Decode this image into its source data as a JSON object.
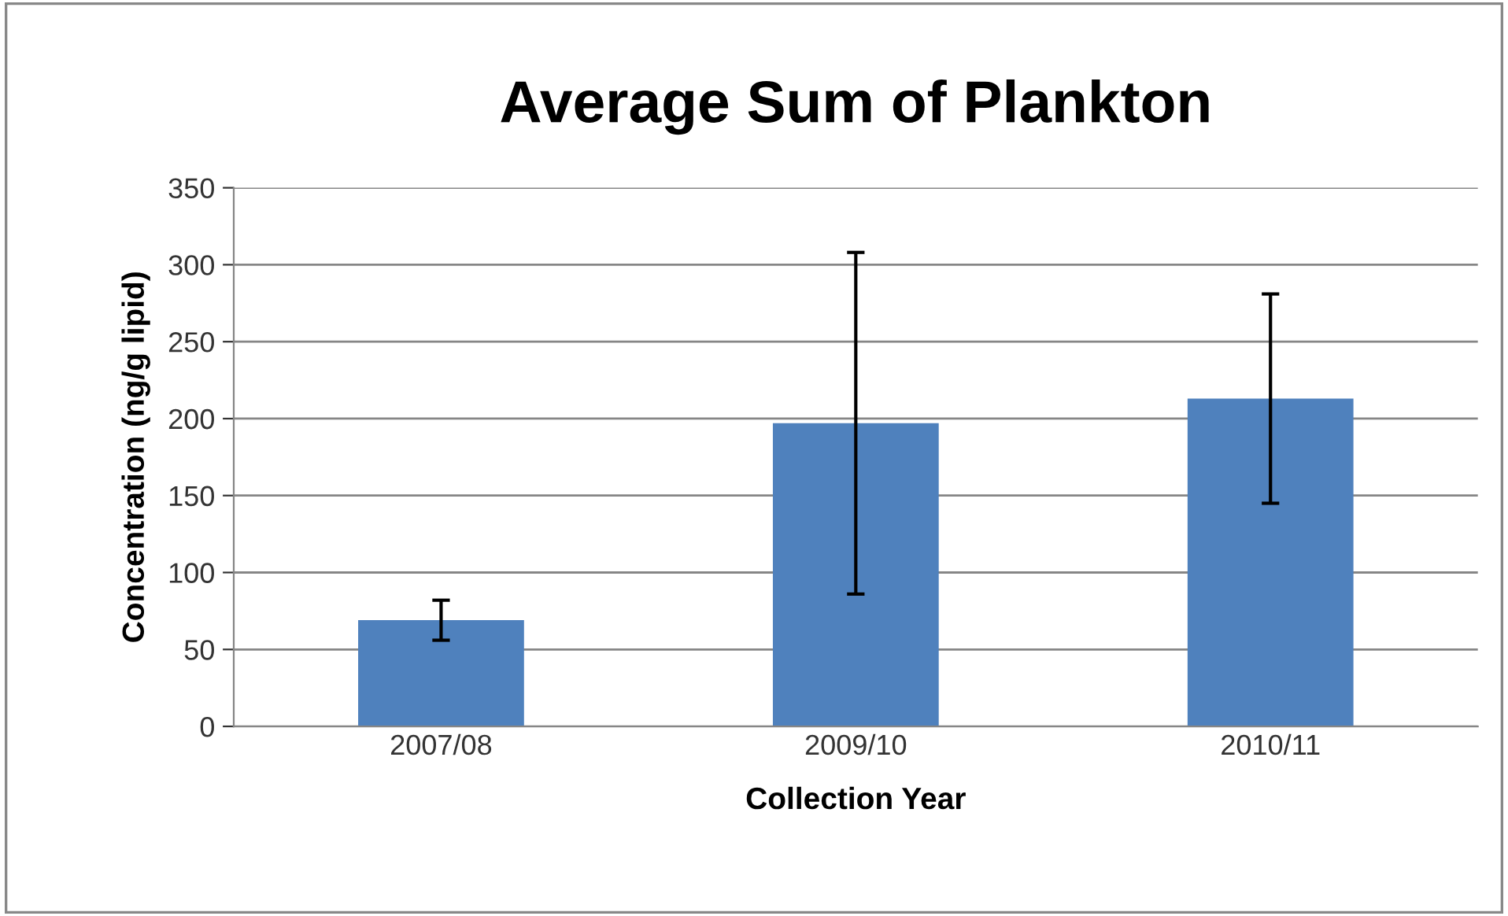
{
  "chart_data": {
    "type": "bar",
    "title": "Average Sum of Plankton",
    "xlabel": "Collection Year",
    "ylabel": "Concentration (ng/g lipid)",
    "categories": [
      "2007/08",
      "2009/10",
      "2010/11"
    ],
    "values": [
      69,
      197,
      213
    ],
    "errors": [
      13,
      111,
      68
    ],
    "color": "#4f81bd",
    "ylim": [
      0,
      350
    ],
    "yticks": [
      0,
      50,
      100,
      150,
      200,
      250,
      300,
      350
    ],
    "grid": "y",
    "legend": false
  }
}
